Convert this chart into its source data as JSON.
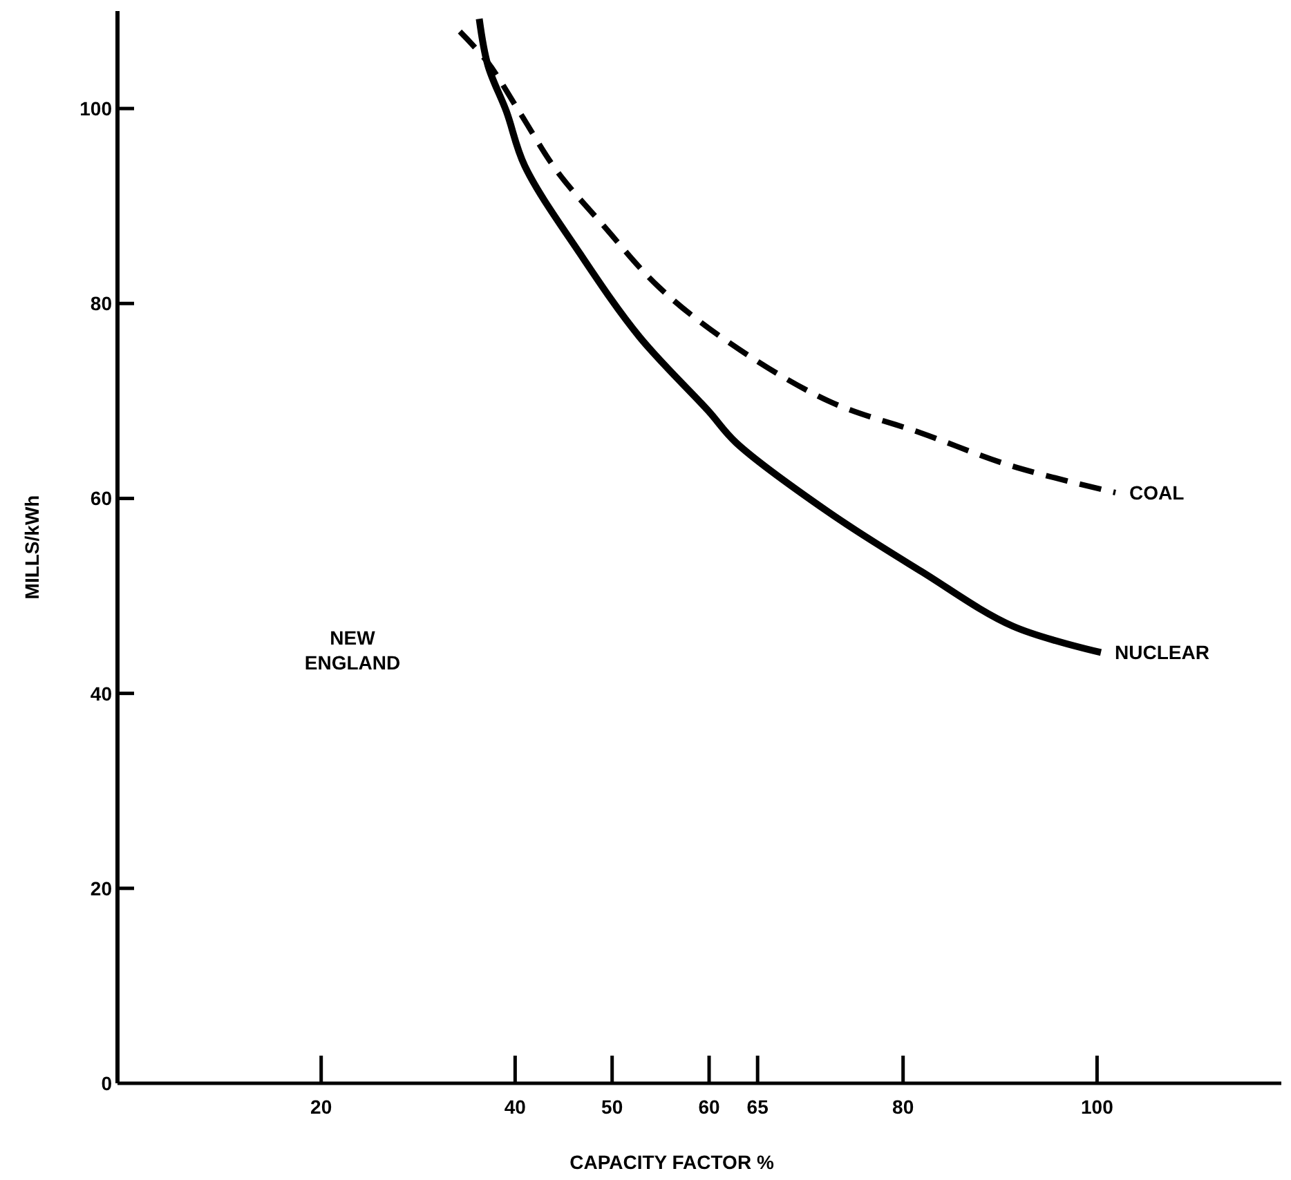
{
  "chart_data": {
    "type": "line",
    "xlabel": "CAPACITY FACTOR %",
    "ylabel": "MILLS/kWh",
    "xlim": [
      -1,
      119
    ],
    "ylim": [
      0,
      110
    ],
    "xticks": [
      20,
      40,
      50,
      60,
      65,
      80,
      100
    ],
    "yticks": [
      0,
      20,
      40,
      60,
      80,
      100
    ],
    "grid": false,
    "annotations": [
      "NEW ENGLAND"
    ],
    "series": [
      {
        "name": "COAL",
        "color": "#000000",
        "line_style": "dashed",
        "x": [
          34.3,
          37.2,
          40.6,
          44.3,
          49.1,
          54.8,
          61.9,
          72.3,
          81.9,
          91.3,
          101.9
        ],
        "values": [
          107.9,
          104.7,
          99.4,
          93.6,
          88.0,
          81.7,
          76.1,
          70.0,
          66.7,
          63.3,
          60.6
        ]
      },
      {
        "name": "NUCLEAR",
        "color": "#000000",
        "line_style": "solid",
        "x": [
          36.3,
          37.2,
          39.1,
          41.0,
          46.7,
          52.8,
          59.9,
          62.8,
          72.3,
          81.9,
          91.3,
          100.4
        ],
        "values": [
          109.2,
          104.4,
          99.7,
          94.1,
          85.1,
          76.6,
          69.0,
          65.7,
          58.6,
          52.5,
          46.9,
          44.2
        ]
      }
    ]
  }
}
